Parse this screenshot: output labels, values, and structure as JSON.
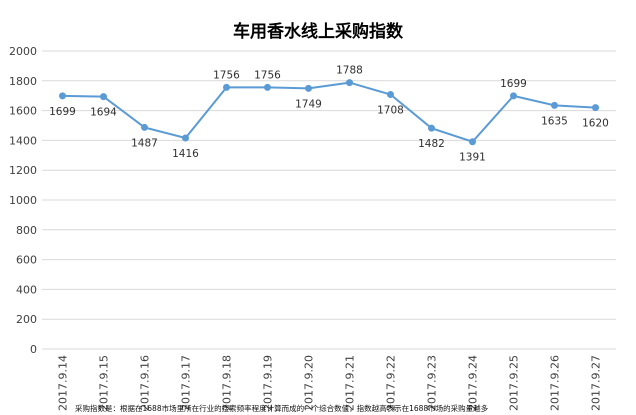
{
  "chart_data": {
    "type": "line",
    "title": "车用香水线上采购指数",
    "categories": [
      "2017.9.14",
      "2017.9.15",
      "2017.9.16",
      "2017.9.17",
      "2017.9.18",
      "2017.9.19",
      "2017.9.20",
      "2017.9.21",
      "2017.9.22",
      "2017.9.23",
      "2017.9.24",
      "2017.9.25",
      "2017.9.26",
      "2017.9.27"
    ],
    "series": [
      {
        "values": [
          1699,
          1694,
          1487,
          1416,
          1756,
          1756,
          1749,
          1788,
          1708,
          1482,
          1391,
          1699,
          1635,
          1620
        ]
      }
    ],
    "ylim": [
      0,
      2000
    ],
    "yticks": [
      0,
      200,
      400,
      600,
      800,
      1000,
      1200,
      1400,
      1600,
      1800,
      2000
    ],
    "grid": true,
    "line_color": "#5b9bd5",
    "footnote": "采购指数是：根据在1688市场里所在行业的搜索频率程度计算而成的一个综合数值，指数越高表示在1688市场的采购量越多"
  }
}
